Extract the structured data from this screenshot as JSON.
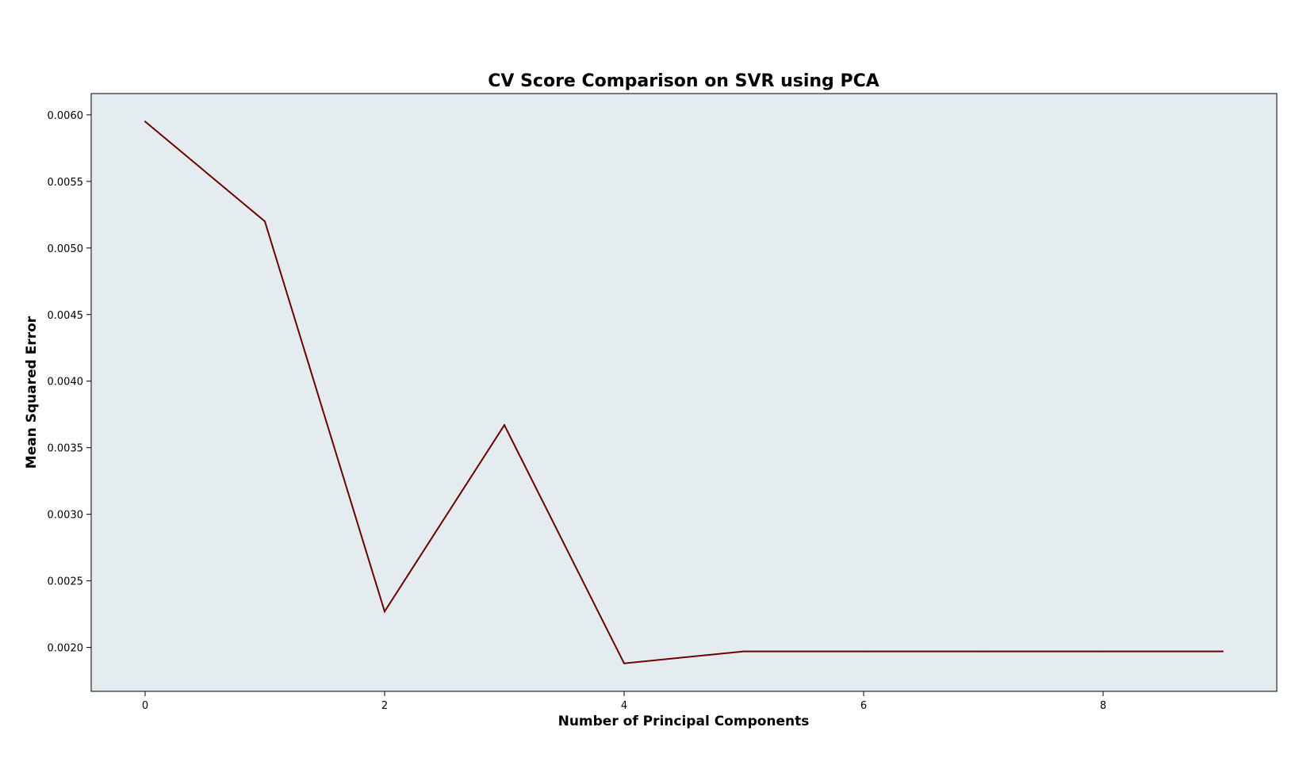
{
  "chart_data": {
    "type": "line",
    "title": "CV Score Comparison on SVR using PCA",
    "xlabel": "Number of Principal Components",
    "ylabel": "Mean Squared Error",
    "x": [
      0,
      1,
      2,
      3,
      4,
      5,
      6,
      7,
      8,
      9
    ],
    "series": [
      {
        "values": [
          0.00595,
          0.0052,
          0.00227,
          0.00367,
          0.00188,
          0.00197,
          0.00197,
          0.00197,
          0.00197,
          0.00197
        ],
        "color": "#6b0000"
      }
    ],
    "xlim": [
      -0.45,
      9.45
    ],
    "ylim": [
      0.00167,
      0.00616
    ],
    "xticks": [
      0,
      2,
      4,
      6,
      8
    ],
    "xtick_labels": [
      "0",
      "2",
      "4",
      "6",
      "8"
    ],
    "yticks": [
      0.002,
      0.0025,
      0.003,
      0.0035,
      0.004,
      0.0045,
      0.005,
      0.0055,
      0.006
    ],
    "ytick_labels": [
      "0.0020",
      "0.0025",
      "0.0030",
      "0.0035",
      "0.0040",
      "0.0045",
      "0.0050",
      "0.0055",
      "0.0060"
    ],
    "grid": false,
    "plot_background": "#e5ecf0",
    "line_color": "#6b0000"
  }
}
